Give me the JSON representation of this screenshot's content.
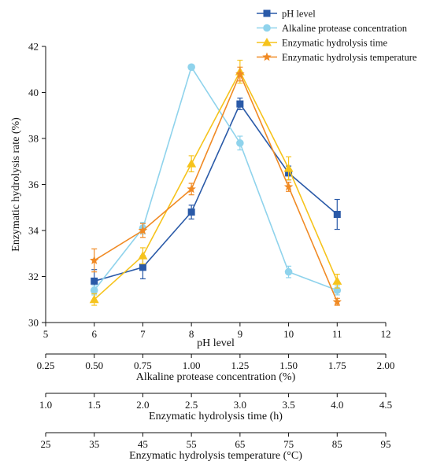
{
  "chart_data": {
    "type": "line",
    "ylabel": "Enzymatic hydrolysis rate (%)",
    "ylim": [
      30,
      42
    ],
    "yticks": [
      30,
      32,
      34,
      36,
      38,
      40,
      42
    ],
    "grid": false,
    "legend_position": "top-right",
    "x_axes": [
      {
        "label": "pH level",
        "ticks": [
          "5",
          "6",
          "7",
          "8",
          "9",
          "10",
          "11",
          "12"
        ]
      },
      {
        "label": "Alkaline protease concentration (%)",
        "ticks": [
          "0.25",
          "0.50",
          "0.75",
          "1.00",
          "1.25",
          "1.50",
          "1.75",
          "2.00"
        ]
      },
      {
        "label": "Enzymatic hydrolysis time (h)",
        "ticks": [
          "1.0",
          "1.5",
          "2.0",
          "2.5",
          "3.0",
          "3.5",
          "4.0",
          "4.5"
        ]
      },
      {
        "label": "Enzymatic hydrolysis temperature (°C)",
        "ticks": [
          "25",
          "35",
          "45",
          "55",
          "65",
          "75",
          "85",
          "95"
        ]
      }
    ],
    "series": [
      {
        "name": "pH level",
        "color": "#2a5aa8",
        "marker": "square",
        "x": [
          6,
          7,
          8,
          9,
          10,
          11
        ],
        "y": [
          31.8,
          32.4,
          34.8,
          39.5,
          36.5,
          34.7
        ],
        "err": [
          0.5,
          0.5,
          0.3,
          0.25,
          0.3,
          0.65
        ]
      },
      {
        "name": "Alkaline protease concentration",
        "color": "#8fd3ec",
        "marker": "circle",
        "x": [
          0.5,
          0.75,
          1.0,
          1.25,
          1.5,
          1.75
        ],
        "y": [
          31.4,
          34.1,
          41.1,
          37.8,
          32.2,
          31.4
        ],
        "err": [
          0.2,
          0.25,
          0.1,
          0.3,
          0.25,
          0.2
        ]
      },
      {
        "name": "Enzymatic hydrolysis time",
        "color": "#f6c31c",
        "marker": "triangle",
        "x": [
          1.5,
          2.0,
          2.5,
          3.0,
          3.5,
          4.0
        ],
        "y": [
          31.0,
          32.9,
          36.9,
          40.9,
          36.7,
          31.8
        ],
        "err": [
          0.25,
          0.35,
          0.35,
          0.5,
          0.5,
          0.3
        ]
      },
      {
        "name": "Enzymatic hydrolysis temperature",
        "color": "#f08a24",
        "marker": "star",
        "x": [
          35,
          45,
          55,
          65,
          75,
          85
        ],
        "y": [
          32.7,
          34.0,
          35.8,
          40.8,
          35.9,
          30.9
        ],
        "err": [
          0.5,
          0.3,
          0.25,
          0.3,
          0.2,
          0.15
        ]
      }
    ]
  }
}
